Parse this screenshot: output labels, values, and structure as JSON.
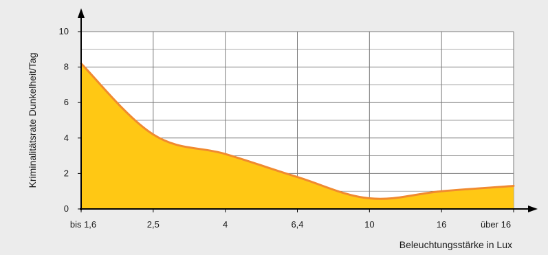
{
  "chart_data": {
    "type": "area",
    "title": "",
    "xlabel": "Beleuchtungsstärke in Lux",
    "ylabel": "Kriminalitätsrate Dunkelheit/Tag",
    "categories": [
      "bis 1,6",
      "2,5",
      "4",
      "6,4",
      "10",
      "16",
      "über 16"
    ],
    "series": [
      {
        "values": [
          8.2,
          4.2,
          3.1,
          1.8,
          0.6,
          1.0,
          1.3
        ]
      }
    ],
    "y_ticks": [
      0,
      2,
      4,
      6,
      8,
      10
    ],
    "ylim": [
      0,
      10
    ],
    "grid": true,
    "legend": "none",
    "colors": {
      "background": "#ececec",
      "plot_background": "#ffffff",
      "area_fill": "#ffc814",
      "line": "#f08a30",
      "grid": "#7a7a7a",
      "axis": "#000000"
    }
  }
}
